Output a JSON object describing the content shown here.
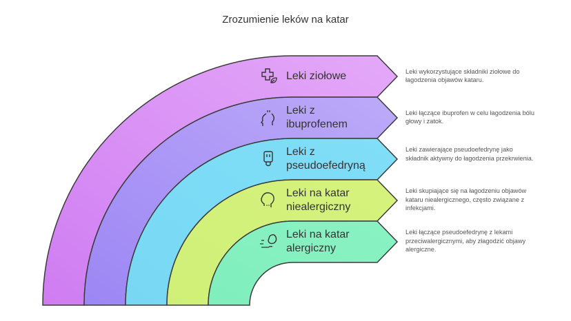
{
  "title": "Zrozumienie leków na katar",
  "items": [
    {
      "label_line1": "Leki ziołowe",
      "label_line2": "",
      "icon": "herbal-cross-leaf-icon",
      "color_top": "#e4a9f8",
      "color_bottom": "#cf7cf2",
      "description": "Leki wykorzystujące składniki ziołowe do łagodzenia objawów kataru."
    },
    {
      "label_line1": "Leki z",
      "label_line2": "ibuprofenem",
      "icon": "headache-head-icon",
      "color_top": "#bcaaf8",
      "color_bottom": "#9c86f4",
      "description": "Leki łączące ibuprofen w celu łagodzenia bólu głowy i zatok."
    },
    {
      "label_line1": "Leki z",
      "label_line2": "pseudoefedryną",
      "icon": "nasal-inhaler-icon",
      "color_top": "#80def7",
      "color_bottom": "#78d8f4",
      "description": "Leki zawierające pseudoefedrynę jako składnik aktywny do łagodzenia przekrwienia."
    },
    {
      "label_line1": "Leki na katar",
      "label_line2": "niealergiczny",
      "icon": "sneezing-head-icon",
      "color_top": "#d6f27c",
      "color_bottom": "#cff078",
      "description": "Leki skupiające się na łagodzeniu objawów kataru niealergicznego, często związane z infekcjami."
    },
    {
      "label_line1": "Leki na katar",
      "label_line2": "alergiczny",
      "icon": "allergy-peanut-icon",
      "color_top": "#8af2c4",
      "color_bottom": "#80eebd",
      "description": "Leki łączące pseudoefedrynę z lekami przeciwalergicznymi, aby złagodzić objawy alergiczne."
    }
  ]
}
